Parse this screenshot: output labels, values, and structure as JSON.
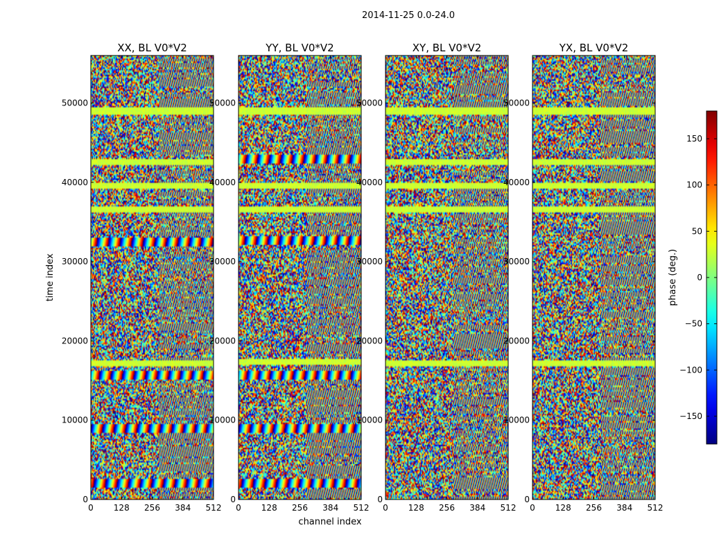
{
  "chart_data": {
    "type": "heatmap",
    "suptitle": "2014-11-25 0.0-24.0",
    "xlabel": "channel index",
    "ylabel": "time index",
    "xlim": [
      0,
      512
    ],
    "ylim": [
      0,
      56000
    ],
    "x_ticks": [
      0,
      128,
      256,
      384,
      512
    ],
    "x_tick_labels": [
      "0",
      "128",
      "256",
      "384",
      "512"
    ],
    "y_ticks": [
      0,
      10000,
      20000,
      30000,
      40000,
      50000
    ],
    "y_tick_labels": [
      "0",
      "10000",
      "20000",
      "30000",
      "40000",
      "50000"
    ],
    "panels": [
      {
        "title": "XX, BL V0*V2",
        "strong_bands": [
          32500,
          15600,
          9000,
          2000
        ],
        "flat_bands": [
          17200,
          39500,
          49000,
          42500,
          36500
        ]
      },
      {
        "title": "YY, BL V0*V2",
        "strong_bands": [
          42900,
          32600,
          15600,
          9000,
          2000
        ],
        "flat_bands": [
          17400,
          39500,
          49000,
          36500
        ]
      },
      {
        "title": "XY, BL V0*V2",
        "strong_bands": [],
        "flat_bands": [
          17200,
          39500,
          49000,
          42500,
          36500
        ]
      },
      {
        "title": "YX, BL V0*V2",
        "strong_bands": [],
        "flat_bands": [
          17200,
          39500,
          49000,
          42500,
          36500
        ]
      }
    ],
    "colorbar": {
      "label": "phase (deg.)",
      "range": [
        -180,
        180
      ],
      "ticks": [
        150,
        100,
        50,
        0,
        -50,
        -100,
        -150
      ],
      "tick_labels": [
        "150",
        "100",
        "50",
        "0",
        "−50",
        "−100",
        "−150"
      ],
      "colormap": "jet"
    }
  }
}
